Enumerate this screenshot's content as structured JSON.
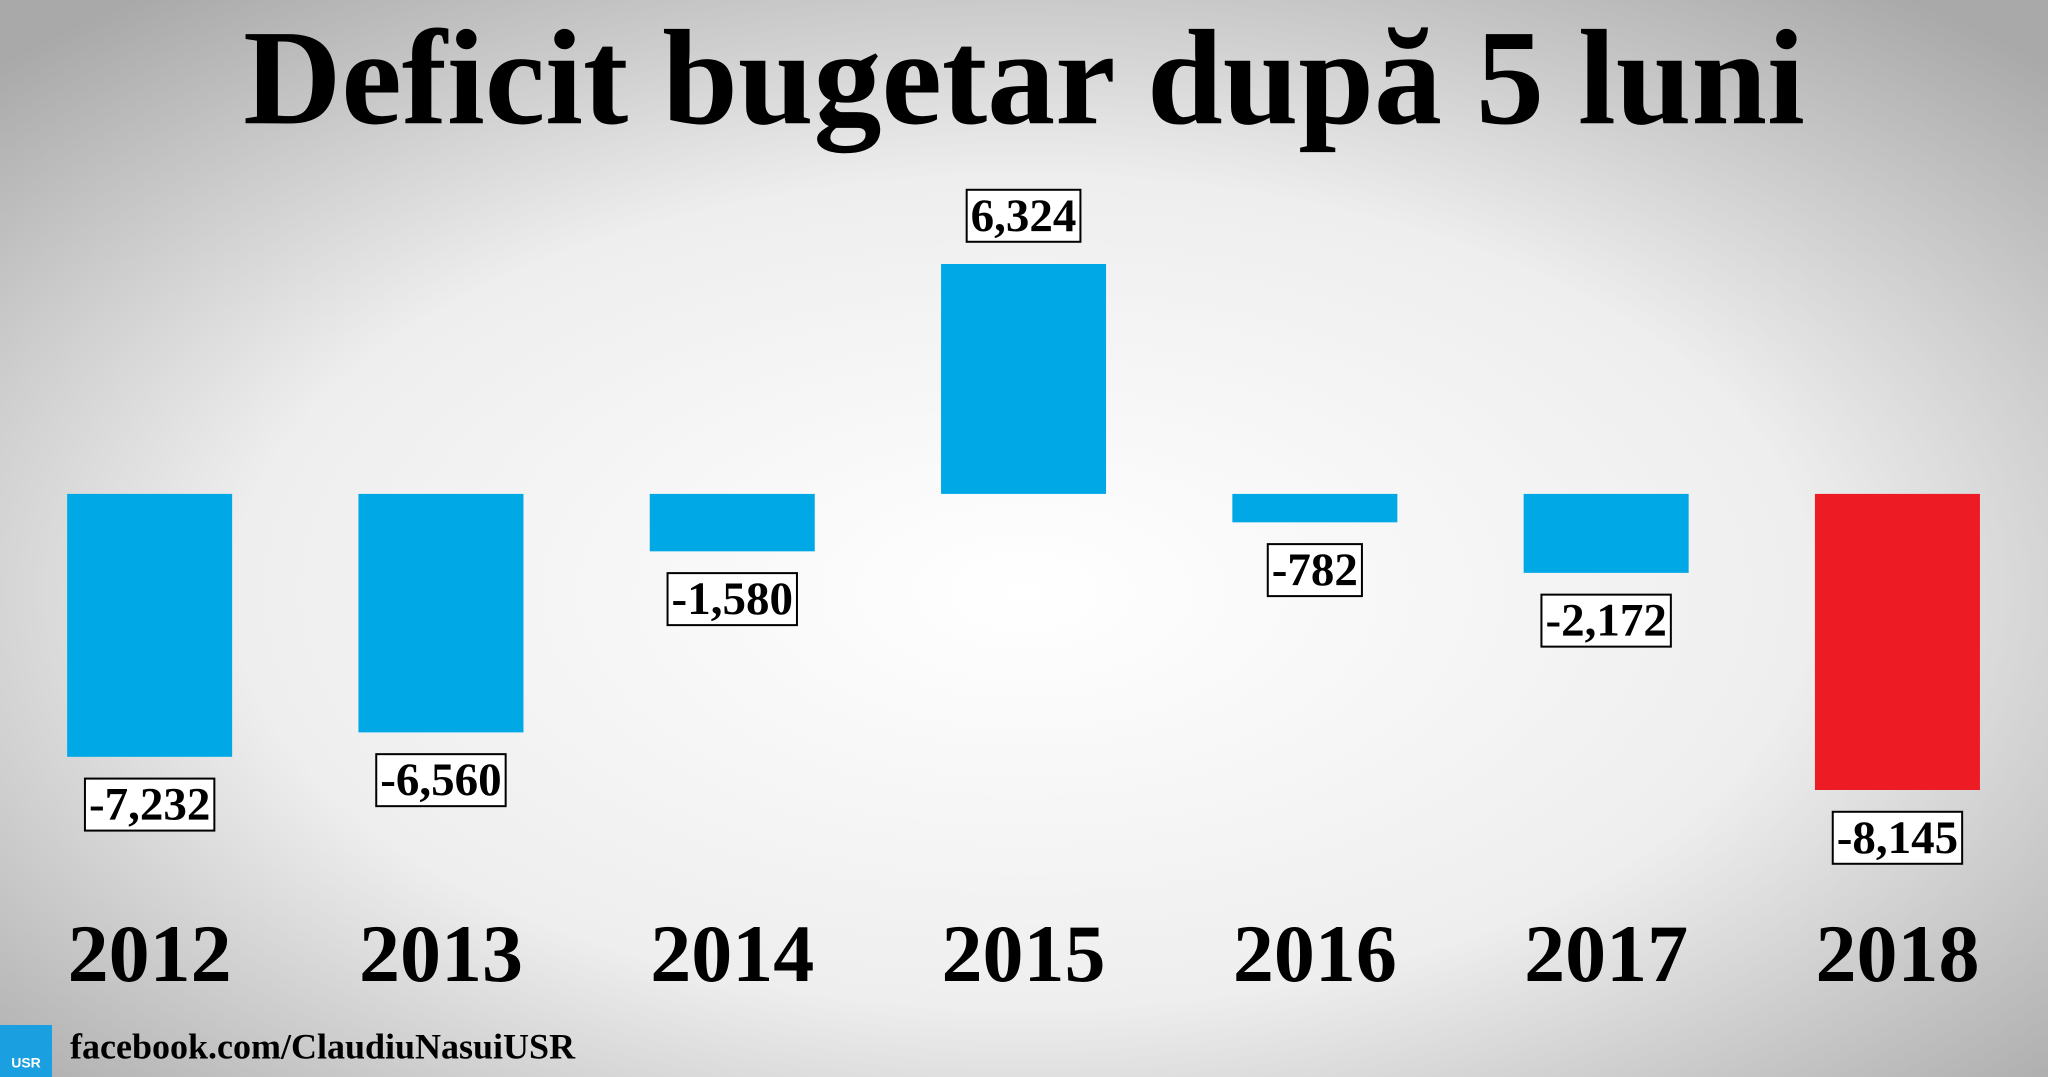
{
  "chart_data": {
    "type": "bar",
    "title": "Deficit bugetar după 5 luni",
    "categories": [
      "2012",
      "2013",
      "2014",
      "2015",
      "2016",
      "2017",
      "2018"
    ],
    "values": [
      -7232,
      -6560,
      -1580,
      6324,
      -782,
      -2172,
      -8145
    ],
    "value_labels": [
      "-7,232",
      "-6,560",
      "-1,580",
      "6,324",
      "-782",
      "-2,172",
      "-8,145"
    ],
    "colors": [
      "#00a8e6",
      "#00a8e6",
      "#00a8e6",
      "#00a8e6",
      "#00a8e6",
      "#00a8e6",
      "#ed1c24"
    ]
  },
  "footer": {
    "logo": "USR",
    "text": "facebook.com/ClaudiuNasuiUSR"
  }
}
